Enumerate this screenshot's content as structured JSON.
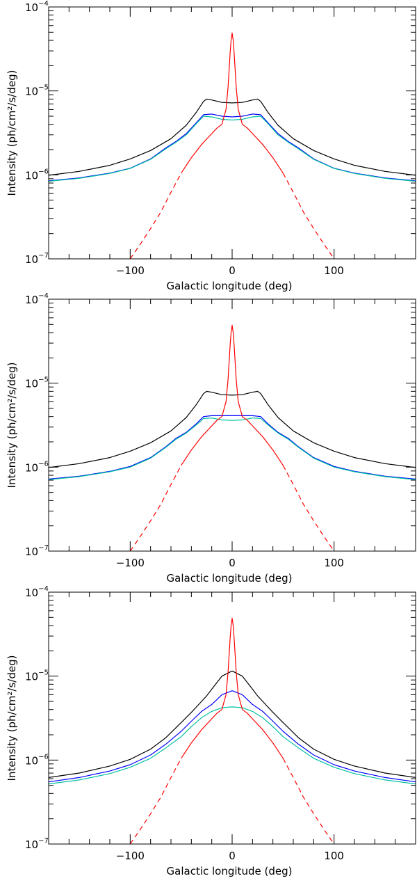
{
  "chart_data": [
    {
      "type": "line",
      "panel": "top",
      "xlabel": "Galactic longitude (deg)",
      "ylabel": "Intensity (ph/cm²/s/deg)",
      "xlim": [
        -180,
        180
      ],
      "ylim": [
        1e-07,
        0.0001
      ],
      "y_scale": "log",
      "xticks": [
        -100,
        0,
        100
      ],
      "yticks": [
        {
          "base": "10",
          "exp": "-7"
        },
        {
          "base": "10",
          "exp": "-6"
        },
        {
          "base": "10",
          "exp": "-5"
        },
        {
          "base": "10",
          "exp": "-4"
        }
      ],
      "series": [
        {
          "color": "#000000",
          "style": "solid",
          "x": [
            -180,
            -150,
            -120,
            -100,
            -80,
            -60,
            -45,
            -35,
            -28,
            -25,
            -20,
            -10,
            0,
            10,
            20,
            25,
            28,
            35,
            45,
            60,
            80,
            100,
            120,
            150,
            180
          ],
          "y": [
            9.9e-07,
            1.1e-06,
            1.3e-06,
            1.55e-06,
            1.95e-06,
            2.7e-06,
            3.9e-06,
            5.6e-06,
            7.5e-06,
            8e-06,
            7.8e-06,
            7.3e-06,
            7.2e-06,
            7.3e-06,
            7.8e-06,
            8e-06,
            7.5e-06,
            5.6e-06,
            3.9e-06,
            2.7e-06,
            1.95e-06,
            1.55e-06,
            1.3e-06,
            1.1e-06,
            9.9e-07
          ]
        },
        {
          "color": "#0000ff",
          "style": "solid",
          "x": [
            -180,
            -150,
            -120,
            -100,
            -80,
            -65,
            -55,
            -45,
            -35,
            -28,
            -20,
            -10,
            0,
            10,
            20,
            28,
            35,
            45,
            55,
            65,
            80,
            100,
            120,
            150,
            180
          ],
          "y": [
            8.5e-07,
            9.2e-07,
            1.05e-06,
            1.2e-06,
            1.55e-06,
            2.1e-06,
            2.5e-06,
            3.1e-06,
            4.2e-06,
            5.2e-06,
            5.3e-06,
            5e-06,
            4.9e-06,
            5e-06,
            5.3e-06,
            5.2e-06,
            4.2e-06,
            3.1e-06,
            2.5e-06,
            2.1e-06,
            1.55e-06,
            1.2e-06,
            1.05e-06,
            9.2e-07,
            8.5e-07
          ]
        },
        {
          "color": "#00c0a0",
          "style": "solid",
          "x": [
            -180,
            -150,
            -120,
            -100,
            -80,
            -65,
            -55,
            -45,
            -35,
            -28,
            -20,
            -10,
            0,
            10,
            20,
            28,
            35,
            45,
            55,
            65,
            80,
            100,
            120,
            150,
            180
          ],
          "y": [
            8.4e-07,
            9.1e-07,
            1.04e-06,
            1.19e-06,
            1.53e-06,
            2.05e-06,
            2.45e-06,
            3e-06,
            4.1e-06,
            5e-06,
            4.9e-06,
            4.6e-06,
            4.5e-06,
            4.6e-06,
            4.9e-06,
            5e-06,
            4.1e-06,
            3e-06,
            2.45e-06,
            2.05e-06,
            1.53e-06,
            1.19e-06,
            1.04e-06,
            9.1e-07,
            8.4e-07
          ]
        },
        {
          "color": "#ff0000",
          "style": "solid",
          "x": [
            -50,
            -40,
            -30,
            -20,
            -15,
            -10,
            -6,
            -4,
            -2,
            -1,
            0,
            1,
            2,
            4,
            6,
            10,
            15,
            20,
            30,
            40,
            50
          ],
          "y": [
            1.05e-06,
            1.6e-06,
            2.3e-06,
            3.1e-06,
            3.6e-06,
            4e-06,
            6e-06,
            1.1e-05,
            2.8e-05,
            4e-05,
            4.9e-05,
            4e-05,
            2.8e-05,
            1.1e-05,
            6e-06,
            4e-06,
            3.6e-06,
            3.1e-06,
            2.3e-06,
            1.6e-06,
            1.05e-06
          ]
        },
        {
          "color": "#ff0000",
          "style": "dashed",
          "x": [
            -100,
            -90,
            -80,
            -70,
            -60,
            -50
          ],
          "y": [
            1e-07,
            1.5e-07,
            2.3e-07,
            3.6e-07,
            6.2e-07,
            1.05e-06
          ]
        },
        {
          "color": "#ff0000",
          "style": "dashed",
          "x": [
            50,
            60,
            70,
            80,
            90,
            100
          ],
          "y": [
            1.05e-06,
            6.2e-07,
            3.6e-07,
            2.3e-07,
            1.5e-07,
            1e-07
          ]
        }
      ]
    },
    {
      "type": "line",
      "panel": "middle",
      "xlabel": "Galactic longitude (deg)",
      "ylabel": "Intensity (ph/cm²/s/deg)",
      "xlim": [
        -180,
        180
      ],
      "ylim": [
        1e-07,
        0.0001
      ],
      "y_scale": "log",
      "xticks": [
        -100,
        0,
        100
      ],
      "yticks": [
        {
          "base": "10",
          "exp": "-7"
        },
        {
          "base": "10",
          "exp": "-6"
        },
        {
          "base": "10",
          "exp": "-5"
        },
        {
          "base": "10",
          "exp": "-4"
        }
      ],
      "series": [
        {
          "color": "#000000",
          "style": "solid",
          "x": [
            -180,
            -150,
            -120,
            -100,
            -80,
            -60,
            -45,
            -35,
            -28,
            -25,
            -20,
            -10,
            0,
            10,
            20,
            25,
            28,
            35,
            45,
            60,
            80,
            100,
            120,
            150,
            180
          ],
          "y": [
            9.9e-07,
            1.1e-06,
            1.3e-06,
            1.55e-06,
            1.95e-06,
            2.7e-06,
            3.9e-06,
            5.6e-06,
            7.5e-06,
            8e-06,
            7.8e-06,
            7.3e-06,
            7.2e-06,
            7.3e-06,
            7.8e-06,
            8e-06,
            7.5e-06,
            5.6e-06,
            3.9e-06,
            2.7e-06,
            1.95e-06,
            1.55e-06,
            1.3e-06,
            1.1e-06,
            9.9e-07
          ]
        },
        {
          "color": "#0000ff",
          "style": "solid",
          "x": [
            -180,
            -150,
            -120,
            -100,
            -80,
            -65,
            -55,
            -45,
            -35,
            -28,
            -20,
            -10,
            0,
            10,
            20,
            28,
            35,
            45,
            55,
            65,
            80,
            100,
            120,
            150,
            180
          ],
          "y": [
            7.2e-07,
            7.8e-07,
            8.9e-07,
            1.02e-06,
            1.3e-06,
            1.75e-06,
            2.2e-06,
            2.6e-06,
            3.3e-06,
            4e-06,
            4.1e-06,
            4.1e-06,
            4.1e-06,
            4.1e-06,
            4.1e-06,
            4e-06,
            3.3e-06,
            2.6e-06,
            2.2e-06,
            1.75e-06,
            1.3e-06,
            1.02e-06,
            8.9e-07,
            7.8e-07,
            7.2e-07
          ]
        },
        {
          "color": "#00c0a0",
          "style": "solid",
          "x": [
            -180,
            -150,
            -120,
            -100,
            -80,
            -65,
            -55,
            -45,
            -35,
            -28,
            -20,
            -10,
            0,
            10,
            20,
            28,
            35,
            45,
            55,
            65,
            80,
            100,
            120,
            150,
            180
          ],
          "y": [
            7.1e-07,
            7.7e-07,
            8.8e-07,
            1e-06,
            1.28e-06,
            1.72e-06,
            2.15e-06,
            2.55e-06,
            3.2e-06,
            3.8e-06,
            3.85e-06,
            3.65e-06,
            3.6e-06,
            3.65e-06,
            3.85e-06,
            3.8e-06,
            3.2e-06,
            2.55e-06,
            2.15e-06,
            1.72e-06,
            1.28e-06,
            1e-06,
            8.8e-07,
            7.7e-07,
            7.1e-07
          ]
        },
        {
          "color": "#ff0000",
          "style": "solid",
          "x": [
            -50,
            -40,
            -30,
            -20,
            -15,
            -10,
            -6,
            -4,
            -2,
            -1,
            0,
            1,
            2,
            4,
            6,
            10,
            15,
            20,
            30,
            40,
            50
          ],
          "y": [
            1.05e-06,
            1.6e-06,
            2.3e-06,
            3.1e-06,
            3.6e-06,
            4e-06,
            6e-06,
            1.1e-05,
            2.8e-05,
            4e-05,
            4.9e-05,
            4e-05,
            2.8e-05,
            1.1e-05,
            6e-06,
            4e-06,
            3.6e-06,
            3.1e-06,
            2.3e-06,
            1.6e-06,
            1.05e-06
          ]
        },
        {
          "color": "#ff0000",
          "style": "dashed",
          "x": [
            -100,
            -90,
            -80,
            -70,
            -60,
            -50
          ],
          "y": [
            1e-07,
            1.5e-07,
            2.3e-07,
            3.6e-07,
            6.2e-07,
            1.05e-06
          ]
        },
        {
          "color": "#ff0000",
          "style": "dashed",
          "x": [
            50,
            60,
            70,
            80,
            90,
            100
          ],
          "y": [
            1.05e-06,
            6.2e-07,
            3.6e-07,
            2.3e-07,
            1.5e-07,
            1e-07
          ]
        }
      ]
    },
    {
      "type": "line",
      "panel": "bottom",
      "xlabel": "Galactic longitude (deg)",
      "ylabel": "Intensity (ph/cm²/s/deg)",
      "xlim": [
        -180,
        180
      ],
      "ylim": [
        1e-07,
        0.0001
      ],
      "y_scale": "log",
      "xticks": [
        -100,
        0,
        100
      ],
      "yticks": [
        {
          "base": "10",
          "exp": "-7"
        },
        {
          "base": "10",
          "exp": "-6"
        },
        {
          "base": "10",
          "exp": "-5"
        },
        {
          "base": "10",
          "exp": "-4"
        }
      ],
      "series": [
        {
          "color": "#000000",
          "style": "solid",
          "x": [
            -180,
            -150,
            -120,
            -100,
            -80,
            -65,
            -50,
            -40,
            -30,
            -25,
            -20,
            -10,
            0,
            10,
            20,
            25,
            30,
            40,
            50,
            65,
            80,
            100,
            120,
            150,
            180
          ],
          "y": [
            6.2e-07,
            7e-07,
            8.5e-07,
            1.02e-06,
            1.35e-06,
            1.85e-06,
            2.8e-06,
            3.7e-06,
            5e-06,
            5.8e-06,
            7e-06,
            1e-05,
            1.15e-05,
            1e-05,
            7e-06,
            5.8e-06,
            5e-06,
            3.7e-06,
            2.8e-06,
            1.85e-06,
            1.35e-06,
            1.02e-06,
            8.5e-07,
            7e-07,
            6.2e-07
          ]
        },
        {
          "color": "#0000ff",
          "style": "solid",
          "x": [
            -180,
            -150,
            -120,
            -100,
            -80,
            -65,
            -50,
            -40,
            -30,
            -20,
            -10,
            0,
            10,
            20,
            30,
            40,
            50,
            65,
            80,
            100,
            120,
            150,
            180
          ],
          "y": [
            5.5e-07,
            6.2e-07,
            7.4e-07,
            8.8e-07,
            1.15e-06,
            1.55e-06,
            2.2e-06,
            2.9e-06,
            3.8e-06,
            4.6e-06,
            6e-06,
            6.7e-06,
            6e-06,
            4.6e-06,
            3.8e-06,
            2.9e-06,
            2.2e-06,
            1.55e-06,
            1.15e-06,
            8.8e-07,
            7.4e-07,
            6.2e-07,
            5.5e-07
          ]
        },
        {
          "color": "#00c0a0",
          "style": "solid",
          "x": [
            -180,
            -150,
            -120,
            -100,
            -80,
            -65,
            -50,
            -40,
            -30,
            -20,
            -10,
            0,
            10,
            20,
            30,
            40,
            50,
            65,
            80,
            100,
            120,
            150,
            180
          ],
          "y": [
            5.2e-07,
            5.8e-07,
            6.9e-07,
            8.2e-07,
            1.05e-06,
            1.4e-06,
            1.9e-06,
            2.5e-06,
            3.2e-06,
            3.8e-06,
            4.2e-06,
            4.3e-06,
            4.2e-06,
            3.8e-06,
            3.2e-06,
            2.5e-06,
            1.9e-06,
            1.4e-06,
            1.05e-06,
            8.2e-07,
            6.9e-07,
            5.8e-07,
            5.2e-07
          ]
        },
        {
          "color": "#ff0000",
          "style": "solid",
          "x": [
            -50,
            -40,
            -30,
            -20,
            -15,
            -10,
            -6,
            -4,
            -2,
            -1,
            0,
            1,
            2,
            4,
            6,
            10,
            15,
            20,
            30,
            40,
            50
          ],
          "y": [
            1.05e-06,
            1.6e-06,
            2.3e-06,
            3.1e-06,
            3.6e-06,
            4e-06,
            6e-06,
            1.1e-05,
            2.8e-05,
            4e-05,
            4.9e-05,
            4e-05,
            2.8e-05,
            1.1e-05,
            6e-06,
            4e-06,
            3.6e-06,
            3.1e-06,
            2.3e-06,
            1.6e-06,
            1.05e-06
          ]
        },
        {
          "color": "#ff0000",
          "style": "dashed",
          "x": [
            -100,
            -90,
            -80,
            -70,
            -60,
            -50
          ],
          "y": [
            1e-07,
            1.5e-07,
            2.3e-07,
            3.6e-07,
            6.2e-07,
            1.05e-06
          ]
        },
        {
          "color": "#ff0000",
          "style": "dashed",
          "x": [
            50,
            60,
            70,
            80,
            90,
            100
          ],
          "y": [
            1.05e-06,
            6.2e-07,
            3.6e-07,
            2.3e-07,
            1.5e-07,
            1e-07
          ]
        }
      ]
    }
  ]
}
